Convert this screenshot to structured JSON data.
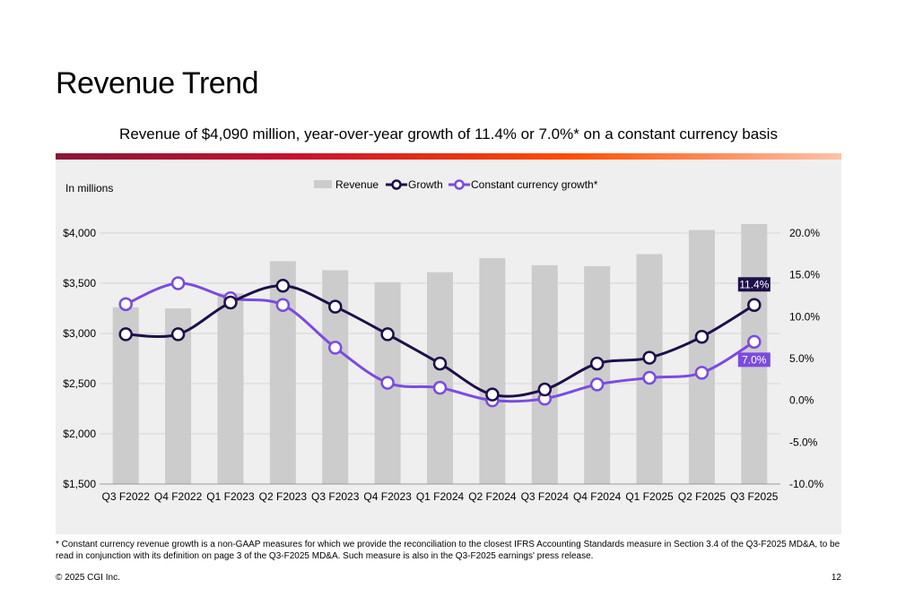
{
  "slide": {
    "title": "Revenue Trend",
    "subtitle": "Revenue of $4,090 million, year-over-year growth of 11.4% or 7.0%* on a constant currency basis",
    "footnote": "* Constant currency revenue growth is a non-GAAP measures for which we provide the reconciliation to the closest IFRS Accounting Standards measure in Section 3.4 of the Q3-F2025 MD&A, to be read in conjunction with its definition on page 3 of the Q3-F2025 MD&A. Such measure is also in the Q3-F2025 earnings' press release.",
    "copyright": "© 2025 CGI Inc.",
    "page_number": "12"
  },
  "chart_data": {
    "type": "bar",
    "unit_label": "In millions",
    "categories": [
      "Q3 F2022",
      "Q4 F2022",
      "Q1 F2023",
      "Q2 F2023",
      "Q3 F2023",
      "Q4 F2023",
      "Q1 F2024",
      "Q2 F2024",
      "Q3 F2024",
      "Q4 F2024",
      "Q1 F2025",
      "Q2 F2025",
      "Q3 F2025"
    ],
    "left_axis": {
      "ylim": [
        1500,
        4000
      ],
      "ticks": [
        1500,
        2000,
        2500,
        3000,
        3500,
        4000
      ],
      "tick_labels": [
        "$1,500",
        "$2,000",
        "$2,500",
        "$3,000",
        "$3,500",
        "$4,000"
      ]
    },
    "right_axis": {
      "ylim": [
        -10,
        20
      ],
      "ticks": [
        -10,
        -5,
        0,
        5,
        10,
        15,
        20
      ],
      "tick_labels": [
        "-10.0%",
        "-5.0%",
        "0.0%",
        "5.0%",
        "10.0%",
        "15.0%",
        "20.0%"
      ]
    },
    "series": [
      {
        "name": "Revenue",
        "kind": "bar",
        "axis": "left",
        "color": "#cccccc",
        "values": [
          3260,
          3250,
          3400,
          3720,
          3630,
          3510,
          3610,
          3750,
          3680,
          3670,
          3790,
          4030,
          4090
        ]
      },
      {
        "name": "Growth",
        "kind": "line",
        "axis": "right",
        "color": "#1e0f4a",
        "values": [
          7.9,
          7.9,
          11.7,
          13.7,
          11.2,
          7.9,
          4.4,
          0.7,
          1.3,
          4.4,
          5.1,
          7.6,
          11.4
        ]
      },
      {
        "name": "Constant currency growth*",
        "kind": "line",
        "axis": "right",
        "color": "#7b4be0",
        "values": [
          11.5,
          14.0,
          12.2,
          11.4,
          6.3,
          2.1,
          1.5,
          0.0,
          0.2,
          1.9,
          2.7,
          3.3,
          7.0
        ]
      }
    ],
    "annotations": [
      {
        "series": "Growth",
        "category": "Q3 F2025",
        "text": "11.4%",
        "color": "#1e0f4a"
      },
      {
        "series": "Constant currency growth*",
        "category": "Q3 F2025",
        "text": "7.0%",
        "color": "#7b4be0"
      }
    ],
    "legend_position": "top-center",
    "grid": true
  }
}
